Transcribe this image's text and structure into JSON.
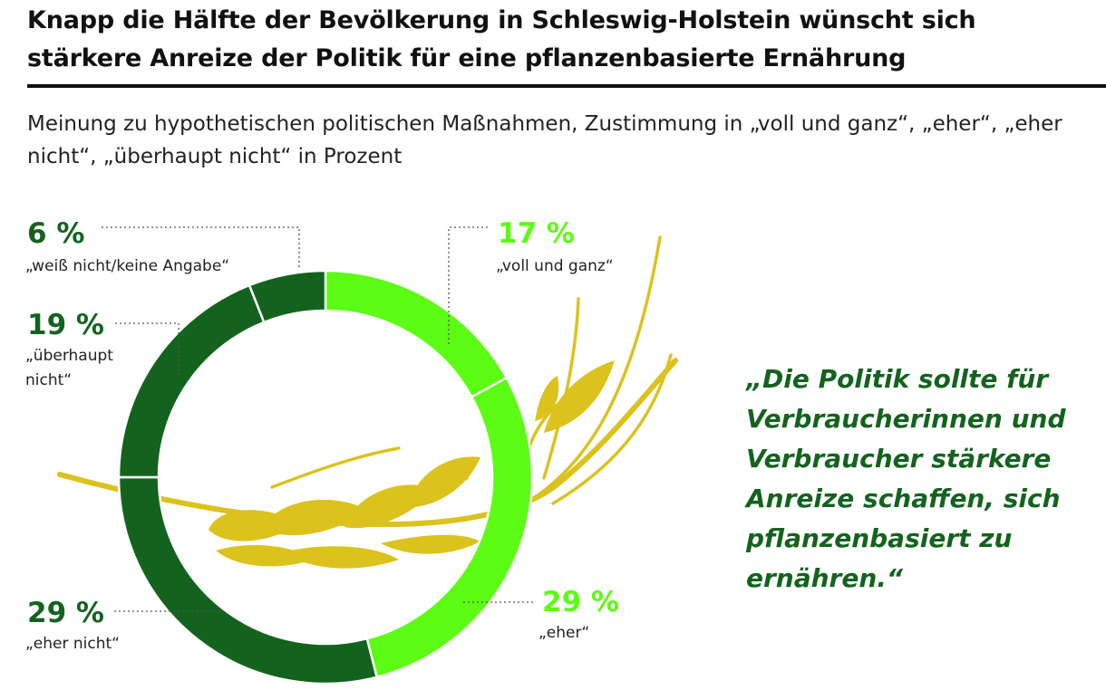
{
  "header": {
    "title": "Knapp die Hälfte der Bevölkerung in Schleswig-Holstein wünscht sich stärkere Anreize der Politik für eine pflanzenbasierte Ernährung",
    "subtitle": "Meinung zu hypothetischen politischen Maßnahmen, Zustimmung in „voll und ganz“, „eher“, „eher nicht“, „überhaupt nicht“ in Prozent"
  },
  "quote": {
    "text": "„Die Politik sollte für Verbraucherinnen und Verbraucher stärkere Anreize schaffen, sich pflanzenbasiert zu ernähren.“"
  },
  "colors": {
    "light_green": "#5cfc14",
    "dark_green": "#13631e",
    "wheat_yellow": "#dcc21d",
    "text": "#111111"
  },
  "decoration": {
    "icon": "wheat-ear-icon"
  },
  "chart_data": {
    "type": "pie",
    "variant": "donut",
    "start": "top",
    "direction": "clockwise",
    "unit": "%",
    "slices": [
      {
        "key": "voll",
        "label": "„voll und ganz“",
        "value": 17,
        "display": "17 %",
        "color": "#5cfc14"
      },
      {
        "key": "eher",
        "label": "„eher“",
        "value": 29,
        "display": "29 %",
        "color": "#5cfc14"
      },
      {
        "key": "ehernicht",
        "label": "„eher nicht“",
        "value": 29,
        "display": "29 %",
        "color": "#13631e"
      },
      {
        "key": "ueberhaupt",
        "label": "„überhaupt nicht“",
        "value": 19,
        "display": "19 %",
        "color": "#13631e"
      },
      {
        "key": "weiss",
        "label": "„weiß nicht/keine Angabe“",
        "value": 6,
        "display": "6 %",
        "color": "#13631e"
      }
    ]
  }
}
